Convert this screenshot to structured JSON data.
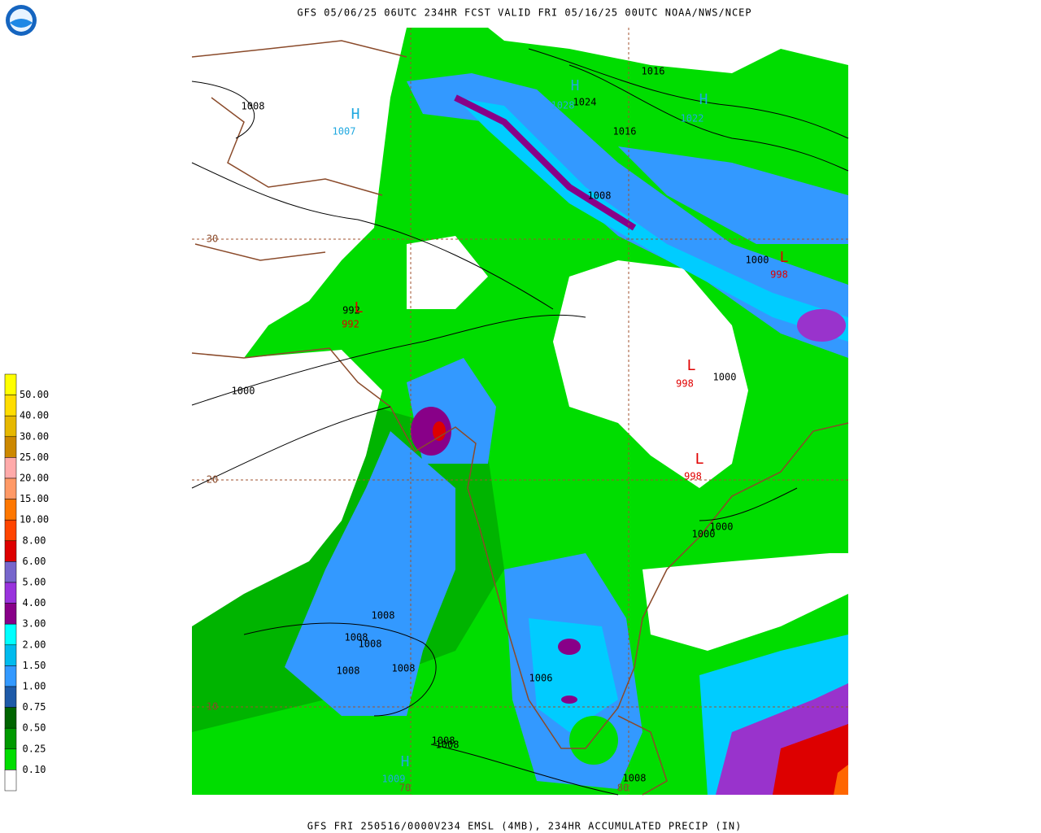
{
  "header": {
    "title": "GFS 05/06/25 06UTC 234HR FCST VALID FRI 05/16/25 00UTC NOAA/NWS/NCEP"
  },
  "footer": {
    "text": "GFS FRI 250516/0000V234 EMSL (4MB), 234HR ACCUMULATED PRECIP (IN)"
  },
  "legend": {
    "labels": [
      "50.00",
      "40.00",
      "30.00",
      "25.00",
      "20.00",
      "15.00",
      "10.00",
      "8.00",
      "6.00",
      "5.00",
      "4.00",
      "3.00",
      "2.00",
      "1.50",
      "1.00",
      "0.75",
      "0.50",
      "0.25",
      "0.10"
    ]
  },
  "map": {
    "labels": [
      {
        "text": "1008"
      },
      {
        "text": "H"
      },
      {
        "text": "1007"
      },
      {
        "text": "1016"
      },
      {
        "text": "H"
      },
      {
        "text": "1028"
      },
      {
        "text": "1024"
      },
      {
        "text": "H"
      },
      {
        "text": "1022"
      },
      {
        "text": "1016"
      },
      {
        "text": "1008"
      },
      {
        "text": "30"
      },
      {
        "text": "1000"
      },
      {
        "text": "L"
      },
      {
        "text": "998"
      },
      {
        "text": "992"
      },
      {
        "text": "L"
      },
      {
        "text": "992"
      },
      {
        "text": "L"
      },
      {
        "text": "998"
      },
      {
        "text": "1000"
      },
      {
        "text": "1000"
      },
      {
        "text": "20"
      },
      {
        "text": "L"
      },
      {
        "text": "998"
      },
      {
        "text": "1000"
      },
      {
        "text": "1000"
      },
      {
        "text": "1008"
      },
      {
        "text": "1008"
      },
      {
        "text": "1008"
      },
      {
        "text": "1008"
      },
      {
        "text": "1008"
      },
      {
        "text": "1006"
      },
      {
        "text": "10"
      },
      {
        "text": "1008"
      },
      {
        "text": "1008"
      },
      {
        "text": "H"
      },
      {
        "text": "1009"
      },
      {
        "text": "70"
      },
      {
        "text": "80"
      },
      {
        "text": "1008"
      }
    ]
  }
}
